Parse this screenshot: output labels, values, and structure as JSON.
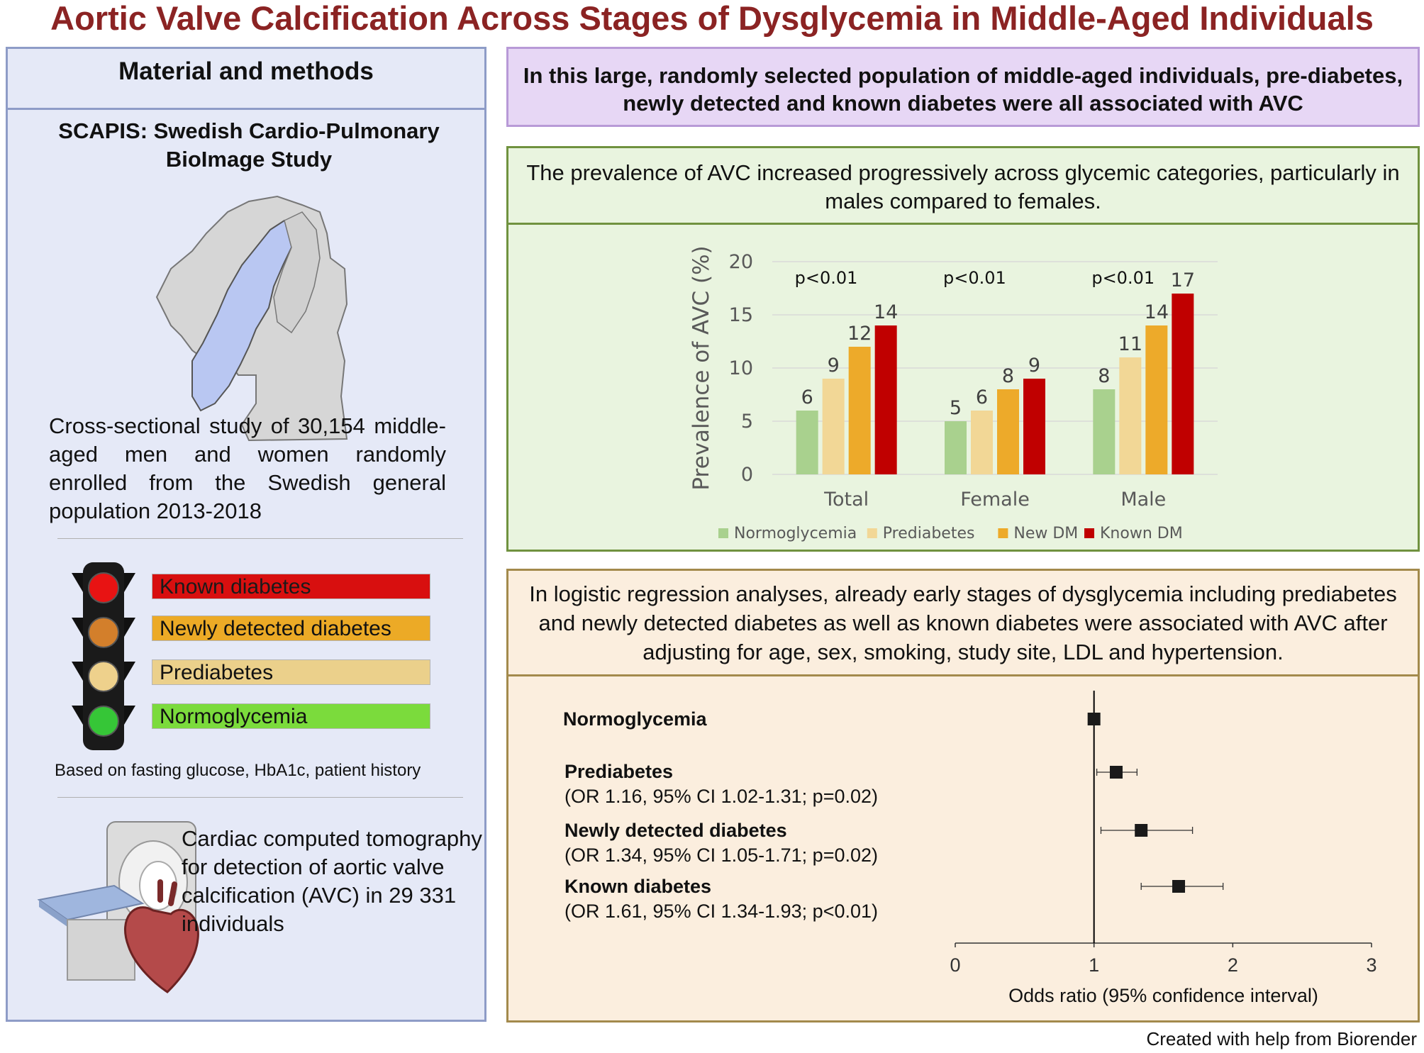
{
  "title": "Aortic Valve Calcification Across Stages of Dysglycemia in Middle-Aged Individuals",
  "left": {
    "header": "Material and methods",
    "study_name": "SCAPIS: Swedish Cardio-Pulmonary BioImage Study",
    "study_desc": "Cross-sectional study of 30,154 middle-aged men and women randomly enrolled from the Swedish general population 2013-2018",
    "categories": [
      {
        "label": "Known diabetes",
        "color": "#d80f0f"
      },
      {
        "label": "Newly detected diabetes",
        "color": "#ecaa26"
      },
      {
        "label": "Prediabetes",
        "color": "#ebd08b"
      },
      {
        "label": "Normoglycemia",
        "color": "#7bdb3c"
      }
    ],
    "based_on": "Based on fasting glucose, HbA1c, patient history",
    "ct_text": "Cardiac computed tomography for detection of aortic valve calcification (AVC) in 29 331 individuals"
  },
  "conclusion": "In this large, randomly selected population of middle-aged individuals, pre-diabetes, newly detected and known diabetes were all associated with AVC",
  "prevalence_text": "The prevalence of AVC increased progressively across glycemic categories, particularly in males compared to females.",
  "regression_text": "In logistic regression analyses, already early stages of dysglycemia including prediabetes and newly detected diabetes as well as known diabetes were associated with AVC after adjusting for age, sex, smoking, study site, LDL and hypertension.",
  "chart_data": [
    {
      "type": "bar",
      "ylabel": "Prevalence of AVC (%)",
      "ylim": [
        0,
        20
      ],
      "yticks": [
        "0",
        "5",
        "10",
        "15",
        "20"
      ],
      "categories": [
        "Total",
        "Female",
        "Male"
      ],
      "pvalues": [
        "p<0.01",
        "p<0.01",
        "p<0.01"
      ],
      "series": [
        {
          "name": "Normoglycemia",
          "color": "#a9d18e",
          "values": [
            6,
            5,
            8
          ]
        },
        {
          "name": "Prediabetes",
          "color": "#f2d796",
          "values": [
            9,
            6,
            11
          ]
        },
        {
          "name": "New DM",
          "color": "#edaa2a",
          "values": [
            12,
            8,
            14
          ]
        },
        {
          "name": "Known DM",
          "color": "#c00000",
          "values": [
            14,
            9,
            17
          ]
        }
      ],
      "legend": "bottom",
      "grid": true
    },
    {
      "type": "scatter",
      "xlabel": "Odds ratio (95% confidence interval)",
      "xlim": [
        0,
        3
      ],
      "xticks": [
        "0",
        "1",
        "2",
        "3"
      ],
      "rows": [
        {
          "name": "Normoglycemia",
          "detail": "",
          "or": 1.0,
          "lo": 1.0,
          "hi": 1.0
        },
        {
          "name": "Prediabetes",
          "detail": "(OR 1.16, 95% CI 1.02-1.31; p=0.02)",
          "or": 1.16,
          "lo": 1.02,
          "hi": 1.31
        },
        {
          "name": "Newly detected diabetes",
          "detail": "(OR 1.34, 95% CI 1.05-1.71; p=0.02)",
          "or": 1.34,
          "lo": 1.05,
          "hi": 1.71
        },
        {
          "name": "Known diabetes",
          "detail": "(OR 1.61, 95% CI 1.34-1.93; p<0.01)",
          "or": 1.61,
          "lo": 1.34,
          "hi": 1.93
        }
      ]
    }
  ],
  "credit": "Created with help from Biorender"
}
